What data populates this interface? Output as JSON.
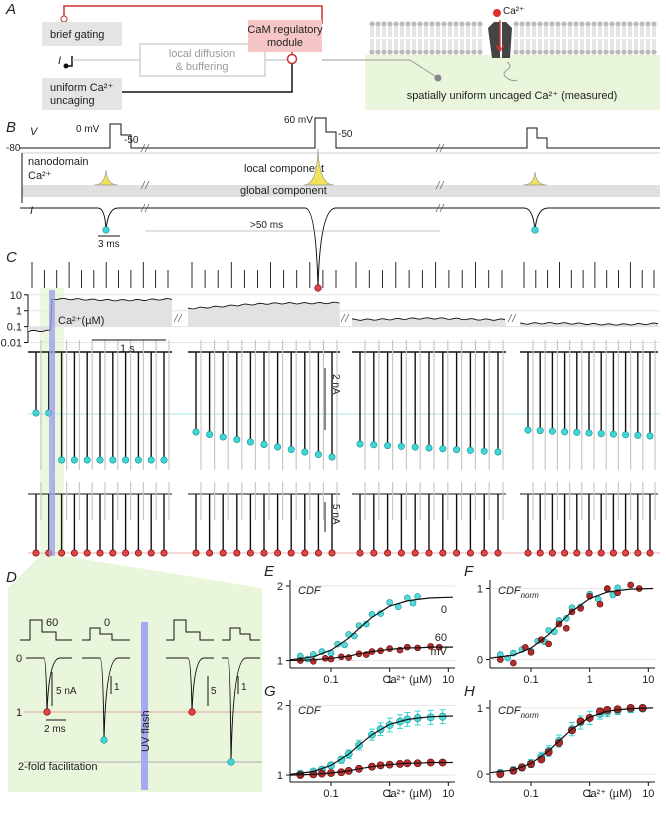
{
  "panel_labels": [
    "A",
    "B",
    "C",
    "D"
  ],
  "A": {
    "brief_gating": "brief gating",
    "I": "I",
    "uniform_uncaging": [
      "uniform Ca²⁺",
      "uncaging"
    ],
    "local": [
      "local diffusion",
      "& buffering"
    ],
    "cam": [
      "CaM regulatory",
      "module"
    ],
    "ca_label": "Ca²⁺",
    "measured": "spatially uniform uncaged Ca²⁺ (measured)"
  },
  "B": {
    "V": "V",
    "v_rest": "-80",
    "v0": "0 mV",
    "v50a": "-50",
    "v60": "60 mV",
    "v50b": "-50",
    "nanodomain": [
      "nanodomain",
      "Ca²⁺"
    ],
    "local": "local component",
    "global": "global component",
    "I": "I",
    "time_bar": "3 ms",
    "gap": ">50 ms"
  },
  "C": {
    "ca_label": "Ca²⁺(µM)",
    "ca_ticks": [
      10,
      1,
      0.1,
      0.01
    ],
    "ca_lim": [
      0.007,
      15
    ],
    "time_bar": "1 s",
    "i_bar_top": "2 nA",
    "i_bar_bottom": "5 nA"
  },
  "D": {
    "v60": "60",
    "v0": "0",
    "i0": "0",
    "bar_a": "5 nA",
    "bar_b": "1",
    "bar_c": "5",
    "bar_d": "1",
    "level": "1",
    "time_bar": "2 ms",
    "flash": "UV flash",
    "fold": "2-fold facilitation"
  },
  "chart_data": [
    {
      "type": "scatter",
      "panel": "E",
      "y_label": {
        "main": "CDF"
      },
      "x_label": "Ca²⁺ (µM)",
      "log_x": true,
      "xlim": [
        0.02,
        13
      ],
      "xticks": [
        0.1,
        1,
        10
      ],
      "ylim": [
        0.9,
        2.08
      ],
      "yticks": [
        1,
        2
      ],
      "legend_unit": "mV",
      "series": [
        {
          "name": "0",
          "color": "#3fd6d6",
          "x": [
            0.03,
            0.04,
            0.05,
            0.07,
            0.1,
            0.13,
            0.17,
            0.2,
            0.25,
            0.3,
            0.4,
            0.5,
            0.7,
            1,
            1.4,
            2,
            2.5,
            3
          ],
          "values": [
            1.06,
            1.02,
            1.08,
            1.12,
            1.1,
            1.22,
            1.21,
            1.35,
            1.33,
            1.47,
            1.49,
            1.62,
            1.63,
            1.78,
            1.72,
            1.84,
            1.77,
            1.86
          ]
        },
        {
          "name": "60",
          "color": "#b01818",
          "x": [
            0.03,
            0.05,
            0.08,
            0.1,
            0.15,
            0.2,
            0.3,
            0.4,
            0.5,
            0.7,
            1,
            1.5,
            2,
            3,
            5,
            7
          ],
          "values": [
            1.0,
            0.99,
            1.03,
            1.02,
            1.05,
            1.04,
            1.09,
            1.08,
            1.12,
            1.13,
            1.16,
            1.14,
            1.18,
            1.17,
            1.19,
            1.18
          ]
        }
      ],
      "fit": {
        "x": [
          0.02,
          0.05,
          0.1,
          0.2,
          0.3,
          0.5,
          1,
          2,
          3,
          5,
          12
        ],
        "series": [
          {
            "values": [
              1.01,
              1.05,
              1.14,
              1.3,
              1.43,
              1.58,
              1.73,
              1.8,
              1.82,
              1.84,
              1.85
            ]
          },
          {
            "values": [
              1.0,
              1.01,
              1.03,
              1.06,
              1.09,
              1.12,
              1.15,
              1.17,
              1.17,
              1.18,
              1.18
            ]
          }
        ]
      }
    },
    {
      "type": "scatter",
      "panel": "F",
      "y_label": {
        "main": "CDF",
        "sub": "norm"
      },
      "log_x": true,
      "xlim": [
        0.02,
        13
      ],
      "xticks": [
        0.1,
        1,
        10
      ],
      "ylim": [
        -0.12,
        1.12
      ],
      "yticks": [
        0,
        1
      ],
      "series": [
        {
          "color": "#3fd6d6",
          "x": [
            0.03,
            0.04,
            0.05,
            0.07,
            0.1,
            0.13,
            0.17,
            0.2,
            0.25,
            0.3,
            0.4,
            0.5,
            0.7,
            1,
            1.4,
            2,
            2.5,
            3
          ],
          "values": [
            0.07,
            0.02,
            0.09,
            0.14,
            0.12,
            0.26,
            0.25,
            0.41,
            0.39,
            0.55,
            0.58,
            0.73,
            0.74,
            0.92,
            0.85,
            0.99,
            0.91,
            1.01
          ]
        },
        {
          "color": "#b01818",
          "x": [
            0.03,
            0.05,
            0.08,
            0.1,
            0.15,
            0.2,
            0.3,
            0.4,
            0.5,
            0.7,
            1,
            1.5,
            2,
            3,
            5,
            7
          ],
          "values": [
            0.0,
            -0.05,
            0.17,
            0.1,
            0.28,
            0.22,
            0.5,
            0.44,
            0.67,
            0.72,
            0.89,
            0.78,
            1.0,
            0.94,
            1.05,
            1.0
          ]
        }
      ],
      "fit": {
        "x": [
          0.02,
          0.05,
          0.1,
          0.2,
          0.3,
          0.5,
          1,
          2,
          3,
          5,
          12
        ],
        "series": [
          {
            "values": [
              0.02,
              0.06,
              0.16,
              0.35,
              0.5,
              0.68,
              0.86,
              0.95,
              0.97,
              0.99,
              1.0
            ]
          }
        ]
      }
    },
    {
      "type": "scatter",
      "panel": "G",
      "y_label": {
        "main": "CDF"
      },
      "x_label": "Ca²⁺ (µM)",
      "log_x": true,
      "xlim": [
        0.02,
        13
      ],
      "xticks": [
        0.1,
        1,
        10
      ],
      "ylim": [
        0.9,
        2.08
      ],
      "yticks": [
        1,
        2
      ],
      "series": [
        {
          "color": "#3fd6d6",
          "x": [
            0.03,
            0.05,
            0.07,
            0.1,
            0.15,
            0.2,
            0.3,
            0.5,
            0.7,
            1,
            1.5,
            2,
            3,
            5,
            8
          ],
          "values": [
            1.02,
            1.05,
            1.08,
            1.14,
            1.22,
            1.3,
            1.43,
            1.58,
            1.66,
            1.72,
            1.77,
            1.8,
            1.82,
            1.83,
            1.84
          ],
          "errors": [
            0.02,
            0.03,
            0.03,
            0.04,
            0.05,
            0.06,
            0.07,
            0.08,
            0.09,
            0.1,
            0.1,
            0.1,
            0.1,
            0.1,
            0.1
          ]
        },
        {
          "color": "#b01818",
          "x": [
            0.03,
            0.05,
            0.07,
            0.1,
            0.15,
            0.2,
            0.3,
            0.5,
            0.7,
            1,
            1.5,
            2,
            3,
            5,
            8
          ],
          "values": [
            1.0,
            1.01,
            1.02,
            1.03,
            1.04,
            1.06,
            1.09,
            1.12,
            1.14,
            1.15,
            1.16,
            1.17,
            1.17,
            1.18,
            1.18
          ]
        }
      ],
      "fit": {
        "x": [
          0.02,
          0.05,
          0.1,
          0.2,
          0.3,
          0.5,
          1,
          2,
          3,
          5,
          12
        ],
        "series": [
          {
            "values": [
              1.01,
              1.05,
              1.14,
              1.3,
              1.43,
              1.58,
              1.73,
              1.8,
              1.82,
              1.84,
              1.85
            ]
          },
          {
            "values": [
              1.0,
              1.01,
              1.03,
              1.06,
              1.09,
              1.12,
              1.15,
              1.17,
              1.17,
              1.18,
              1.18
            ]
          }
        ]
      }
    },
    {
      "type": "scatter",
      "panel": "H",
      "y_label": {
        "main": "CDF",
        "sub": "norm"
      },
      "x_label": "Ca²⁺ (µM)",
      "log_x": true,
      "xlim": [
        0.02,
        13
      ],
      "xticks": [
        0.1,
        1,
        10
      ],
      "ylim": [
        -0.12,
        1.12
      ],
      "yticks": [
        0,
        1
      ],
      "series": [
        {
          "color": "#3fd6d6",
          "x": [
            0.03,
            0.05,
            0.07,
            0.1,
            0.15,
            0.2,
            0.3,
            0.5,
            0.7,
            1,
            1.5,
            2,
            3,
            5,
            8
          ],
          "values": [
            0.02,
            0.06,
            0.1,
            0.16,
            0.26,
            0.35,
            0.5,
            0.68,
            0.78,
            0.85,
            0.91,
            0.94,
            0.96,
            0.98,
            0.99
          ],
          "errors": [
            0.04,
            0.05,
            0.05,
            0.06,
            0.07,
            0.08,
            0.09,
            0.1,
            0.1,
            0.1,
            0.08,
            0.07,
            0.06,
            0.05,
            0.04
          ]
        },
        {
          "color": "#b01818",
          "x": [
            0.03,
            0.05,
            0.07,
            0.1,
            0.15,
            0.2,
            0.3,
            0.5,
            0.7,
            1,
            1.5,
            2,
            3,
            5,
            8
          ],
          "values": [
            0.0,
            0.05,
            0.1,
            0.15,
            0.22,
            0.33,
            0.47,
            0.66,
            0.8,
            0.85,
            0.95,
            0.97,
            0.98,
            1.0,
            1.0
          ]
        }
      ],
      "fit": {
        "x": [
          0.02,
          0.05,
          0.1,
          0.2,
          0.3,
          0.5,
          1,
          2,
          3,
          5,
          12
        ],
        "series": [
          {
            "values": [
              0.02,
              0.06,
              0.16,
              0.35,
              0.5,
              0.68,
              0.86,
              0.95,
              0.97,
              0.99,
              1.0
            ]
          }
        ]
      }
    }
  ]
}
